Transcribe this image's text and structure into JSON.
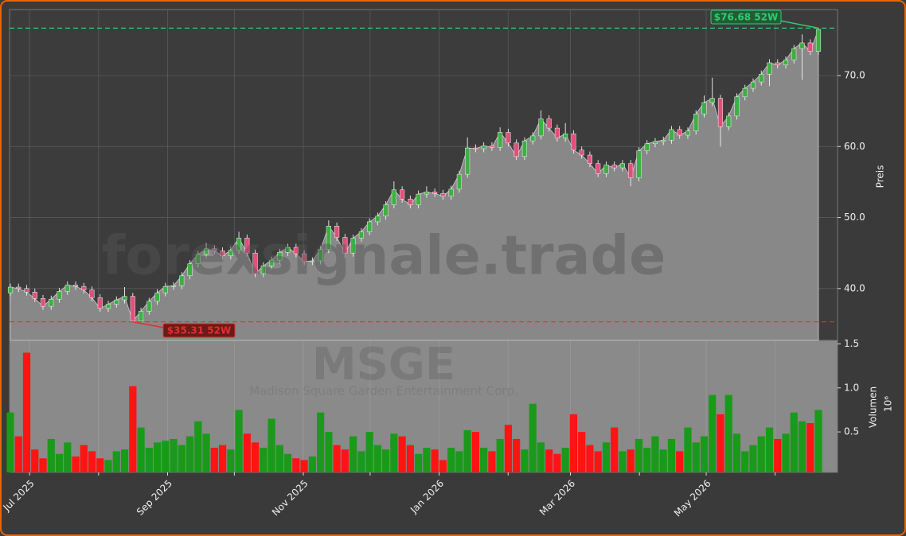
{
  "chart_data": {
    "type": "candlestick",
    "watermark": "forexsignale.trade",
    "symbol": "MSGE",
    "company": "Madison Square Garden Entertainment Corp.",
    "ylabel": "Preis",
    "xlim": [
      "2025-06-22",
      "2026-06-29"
    ],
    "xticks": [
      {
        "value": "2025-07",
        "label": "Jul 2025"
      },
      {
        "value": "2025-08",
        "label": null
      },
      {
        "value": "2025-09",
        "label": "Sep 2025"
      },
      {
        "value": "2025-10",
        "label": null
      },
      {
        "value": "2025-11",
        "label": "Nov 2025"
      },
      {
        "value": "2025-12",
        "label": null
      },
      {
        "value": "2026-01",
        "label": "Jan 2026"
      },
      {
        "value": "2026-02",
        "label": null
      },
      {
        "value": "2026-03",
        "label": "Mar 2026"
      },
      {
        "value": "2026-04",
        "label": null
      },
      {
        "value": "2026-05",
        "label": "May 2026"
      },
      {
        "value": "2026-06",
        "label": null
      }
    ],
    "ylim": [
      32.7,
      79.3
    ],
    "yticks": [
      {
        "value": 40,
        "label": "40.0"
      },
      {
        "value": 50,
        "label": "50.0"
      },
      {
        "value": 60,
        "label": "60.0"
      },
      {
        "value": 70,
        "label": "70.0"
      }
    ],
    "grid": true,
    "up_color": "#3cb043",
    "down_color": "#e0507a",
    "area_color": "#888888",
    "high_52w": {
      "value": 76.68,
      "label": "$76.68 52W",
      "color": "#2ecc71"
    },
    "low_52w": {
      "value": 35.31,
      "label": "$35.31 52W",
      "color": "#e03030"
    },
    "open": [
      39.4,
      40.2,
      40.0,
      39.5,
      38.6,
      37.5,
      38.5,
      39.6,
      40.5,
      40.3,
      39.8,
      38.7,
      37.2,
      37.8,
      38.4,
      38.9,
      35.4,
      36.8,
      38.2,
      39.4,
      40.3,
      40.4,
      41.8,
      43.5,
      44.8,
      45.6,
      45.3,
      44.6,
      45.4,
      47.1,
      45.0,
      42.1,
      43.2,
      44.0,
      45.1,
      45.8,
      44.9,
      43.8,
      43.9,
      45.5,
      48.8,
      47.2,
      45.0,
      47.1,
      48.0,
      49.4,
      50.2,
      51.8,
      53.9,
      52.6,
      51.8,
      53.3,
      53.6,
      53.4,
      53.0,
      54.0,
      56.1,
      59.8,
      59.7,
      60.1,
      59.9,
      62.0,
      60.5,
      58.6,
      60.8,
      61.5,
      63.9,
      62.6,
      61.2,
      61.8,
      59.5,
      58.8,
      57.6,
      56.2,
      57.4,
      57.0,
      57.6,
      55.6,
      59.4,
      60.4,
      60.7,
      60.9,
      62.4,
      61.6,
      62.2,
      64.6,
      66.2,
      66.8,
      62.8,
      64.3,
      67.0,
      68.2,
      69.1,
      70.2,
      71.8,
      71.5,
      72.2,
      73.8,
      74.6,
      73.4
    ],
    "high": [
      40.7,
      40.7,
      40.5,
      40.0,
      39.1,
      39.0,
      40.1,
      41.0,
      41.0,
      40.8,
      40.3,
      39.2,
      38.3,
      38.9,
      40.2,
      39.4,
      37.3,
      38.7,
      39.9,
      40.8,
      40.9,
      42.3,
      44.0,
      45.3,
      46.4,
      46.1,
      45.8,
      45.9,
      48.0,
      47.6,
      45.5,
      43.7,
      44.5,
      45.6,
      46.3,
      46.3,
      45.4,
      44.4,
      46.0,
      49.6,
      49.3,
      47.7,
      47.6,
      48.5,
      49.9,
      50.7,
      52.3,
      55.1,
      54.4,
      53.1,
      53.8,
      54.4,
      54.1,
      53.9,
      54.5,
      56.6,
      61.3,
      60.3,
      60.6,
      60.6,
      62.7,
      62.5,
      61.0,
      61.3,
      62.0,
      65.1,
      64.4,
      63.1,
      63.3,
      62.3,
      60.0,
      59.3,
      58.1,
      57.9,
      57.9,
      58.1,
      58.1,
      59.9,
      60.9,
      61.2,
      61.4,
      62.9,
      62.9,
      62.7,
      65.1,
      67.2,
      69.7,
      67.3,
      64.8,
      67.5,
      68.7,
      69.6,
      70.7,
      72.3,
      72.3,
      72.7,
      74.3,
      75.8,
      75.1,
      76.68
    ],
    "low": [
      38.9,
      39.5,
      39.0,
      38.1,
      37.0,
      37.0,
      38.0,
      39.1,
      39.8,
      39.3,
      38.2,
      36.7,
      36.7,
      37.3,
      37.9,
      35.31,
      35.6,
      36.3,
      37.7,
      38.9,
      39.8,
      39.9,
      41.3,
      43.0,
      44.3,
      44.8,
      44.1,
      44.1,
      44.9,
      44.5,
      41.6,
      41.6,
      42.7,
      43.5,
      44.6,
      44.4,
      43.3,
      43.3,
      43.4,
      45.0,
      46.7,
      44.3,
      44.5,
      46.6,
      47.5,
      48.9,
      49.7,
      51.3,
      52.1,
      51.3,
      51.3,
      52.8,
      52.9,
      52.5,
      52.5,
      53.5,
      55.6,
      59.2,
      59.2,
      59.4,
      59.4,
      60.0,
      58.1,
      58.1,
      60.3,
      61.0,
      62.1,
      60.7,
      60.7,
      59.0,
      58.3,
      57.1,
      55.7,
      55.7,
      56.5,
      56.5,
      54.4,
      55.1,
      58.9,
      59.9,
      60.2,
      60.4,
      61.1,
      61.1,
      61.7,
      64.1,
      65.7,
      60.0,
      62.3,
      63.8,
      66.5,
      67.7,
      68.6,
      68.5,
      71.0,
      71.0,
      71.7,
      69.4,
      72.9,
      72.9
    ],
    "close": [
      40.2,
      40.0,
      39.5,
      38.6,
      37.5,
      38.5,
      39.6,
      40.5,
      40.3,
      39.8,
      38.7,
      37.2,
      37.8,
      38.4,
      38.9,
      35.4,
      36.8,
      38.2,
      39.4,
      40.3,
      40.4,
      41.8,
      43.5,
      44.8,
      45.6,
      45.3,
      44.6,
      45.4,
      47.1,
      45.0,
      42.1,
      43.2,
      44.0,
      45.1,
      45.8,
      44.9,
      43.8,
      43.9,
      45.5,
      48.8,
      47.2,
      45.0,
      47.1,
      48.0,
      49.4,
      50.2,
      51.8,
      53.9,
      52.6,
      51.8,
      53.3,
      53.6,
      53.4,
      53.0,
      54.0,
      56.1,
      59.8,
      59.7,
      60.1,
      59.9,
      62.0,
      60.5,
      58.6,
      60.8,
      61.5,
      63.9,
      62.6,
      61.2,
      61.8,
      59.5,
      58.8,
      57.6,
      56.2,
      57.4,
      57.0,
      57.6,
      55.6,
      59.4,
      60.4,
      60.7,
      60.9,
      62.4,
      61.6,
      62.2,
      64.6,
      66.2,
      66.8,
      62.8,
      64.3,
      67.0,
      68.2,
      69.1,
      70.2,
      71.8,
      71.5,
      72.2,
      73.8,
      74.6,
      73.4,
      76.5
    ],
    "volume": {
      "label": "Volumen",
      "offset": "10⁶",
      "ylim": [
        0.04,
        1.54
      ],
      "yticks": [
        0.5,
        {
          "value": 1,
          "label": "1.0"
        },
        1.5
      ],
      "up_color": "#1a9a1a",
      "down_color": "#ff1414",
      "values": [
        0.72,
        0.45,
        1.4,
        0.3,
        0.2,
        0.42,
        0.25,
        0.38,
        0.22,
        0.35,
        0.28,
        0.2,
        0.18,
        0.28,
        0.3,
        1.02,
        0.55,
        0.32,
        0.38,
        0.4,
        0.42,
        0.35,
        0.45,
        0.62,
        0.48,
        0.32,
        0.35,
        0.3,
        0.75,
        0.48,
        0.38,
        0.32,
        0.65,
        0.35,
        0.25,
        0.2,
        0.18,
        0.22,
        0.72,
        0.5,
        0.35,
        0.3,
        0.45,
        0.28,
        0.5,
        0.35,
        0.3,
        0.48,
        0.45,
        0.35,
        0.25,
        0.32,
        0.3,
        0.18,
        0.32,
        0.28,
        0.52,
        0.5,
        0.32,
        0.28,
        0.42,
        0.58,
        0.42,
        0.3,
        0.82,
        0.38,
        0.3,
        0.25,
        0.32,
        0.7,
        0.5,
        0.35,
        0.28,
        0.38,
        0.55,
        0.28,
        0.3,
        0.42,
        0.32,
        0.45,
        0.3,
        0.42,
        0.28,
        0.55,
        0.38,
        0.45,
        0.92,
        0.7,
        0.92,
        0.48,
        0.28,
        0.35,
        0.45,
        0.55,
        0.42,
        0.48,
        0.72,
        0.62,
        0.6,
        0.75
      ]
    }
  }
}
